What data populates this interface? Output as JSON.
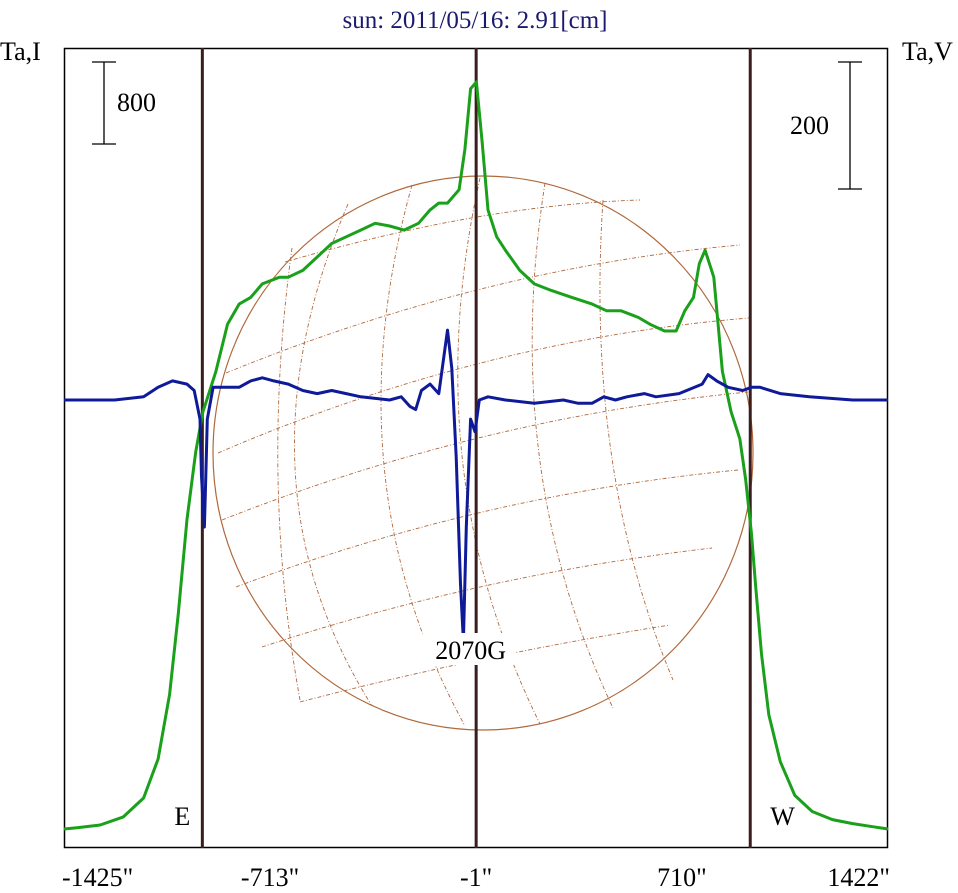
{
  "chart_data": {
    "type": "line",
    "title": "sun: 2011/05/16: 2.91[cm]",
    "left_axis_label": "Ta,I",
    "right_axis_label": "Ta,V",
    "left_scale_bar": "800",
    "right_scale_bar": "200",
    "x_ticks": [
      {
        "value": -1425,
        "label": "-1425\""
      },
      {
        "value": -713,
        "label": "-713\""
      },
      {
        "value": -1,
        "label": "-1\""
      },
      {
        "value": 710,
        "label": "710\""
      },
      {
        "value": 1422,
        "label": "1422\""
      }
    ],
    "xlim": [
      -1425,
      1422
    ],
    "limb_markers": [
      {
        "x": -947,
        "label": "E"
      },
      {
        "x": -1,
        "label": ""
      },
      {
        "x": 946,
        "label": "W"
      }
    ],
    "annotations": [
      {
        "x": -20,
        "text": "2070G"
      }
    ],
    "series": [
      {
        "color": "#1aa01a",
        "axis": "left",
        "points": [
          [
            -1425,
            0
          ],
          [
            -1380,
            10
          ],
          [
            -1300,
            30
          ],
          [
            -1220,
            90
          ],
          [
            -1150,
            230
          ],
          [
            -1100,
            520
          ],
          [
            -1060,
            1000
          ],
          [
            -1030,
            1600
          ],
          [
            -1000,
            2300
          ],
          [
            -970,
            2800
          ],
          [
            -945,
            3100
          ],
          [
            -930,
            3200
          ],
          [
            -900,
            3400
          ],
          [
            -860,
            3750
          ],
          [
            -820,
            3900
          ],
          [
            -780,
            3950
          ],
          [
            -740,
            4050
          ],
          [
            -680,
            4100
          ],
          [
            -650,
            4100
          ],
          [
            -600,
            4150
          ],
          [
            -550,
            4250
          ],
          [
            -500,
            4350
          ],
          [
            -450,
            4400
          ],
          [
            -400,
            4450
          ],
          [
            -350,
            4500
          ],
          [
            -300,
            4480
          ],
          [
            -250,
            4450
          ],
          [
            -200,
            4500
          ],
          [
            -160,
            4600
          ],
          [
            -130,
            4650
          ],
          [
            -100,
            4650
          ],
          [
            -60,
            4750
          ],
          [
            -40,
            5050
          ],
          [
            -20,
            5500
          ],
          [
            0,
            5550
          ],
          [
            20,
            5100
          ],
          [
            40,
            4600
          ],
          [
            70,
            4400
          ],
          [
            100,
            4300
          ],
          [
            150,
            4150
          ],
          [
            200,
            4050
          ],
          [
            260,
            4000
          ],
          [
            330,
            3950
          ],
          [
            400,
            3900
          ],
          [
            450,
            3850
          ],
          [
            500,
            3850
          ],
          [
            560,
            3800
          ],
          [
            600,
            3750
          ],
          [
            650,
            3700
          ],
          [
            690,
            3700
          ],
          [
            720,
            3850
          ],
          [
            750,
            3950
          ],
          [
            770,
            4200
          ],
          [
            790,
            4300
          ],
          [
            820,
            4100
          ],
          [
            850,
            3400
          ],
          [
            880,
            3100
          ],
          [
            910,
            2900
          ],
          [
            930,
            2600
          ],
          [
            950,
            2200
          ],
          [
            965,
            1800
          ],
          [
            985,
            1300
          ],
          [
            1010,
            850
          ],
          [
            1050,
            500
          ],
          [
            1100,
            250
          ],
          [
            1160,
            130
          ],
          [
            1230,
            70
          ],
          [
            1300,
            40
          ],
          [
            1360,
            20
          ],
          [
            1422,
            0
          ]
        ]
      },
      {
        "color": "#0f1a99",
        "axis": "right",
        "points": [
          [
            -1425,
            0
          ],
          [
            -1250,
            0
          ],
          [
            -1150,
            5
          ],
          [
            -1100,
            20
          ],
          [
            -1050,
            30
          ],
          [
            -1000,
            25
          ],
          [
            -975,
            15
          ],
          [
            -955,
            -30
          ],
          [
            -950,
            -120
          ],
          [
            -945,
            -160
          ],
          [
            -940,
            -200
          ],
          [
            -935,
            -120
          ],
          [
            -930,
            -30
          ],
          [
            -910,
            20
          ],
          [
            -880,
            20
          ],
          [
            -820,
            20
          ],
          [
            -780,
            30
          ],
          [
            -740,
            35
          ],
          [
            -700,
            30
          ],
          [
            -650,
            25
          ],
          [
            -600,
            15
          ],
          [
            -550,
            10
          ],
          [
            -500,
            15
          ],
          [
            -450,
            10
          ],
          [
            -400,
            5
          ],
          [
            -300,
            0
          ],
          [
            -260,
            5
          ],
          [
            -230,
            -10
          ],
          [
            -210,
            -15
          ],
          [
            -190,
            15
          ],
          [
            -160,
            25
          ],
          [
            -130,
            10
          ],
          [
            -100,
            110
          ],
          [
            -85,
            50
          ],
          [
            -70,
            -90
          ],
          [
            -55,
            -290
          ],
          [
            -45,
            -380
          ],
          [
            -35,
            -200
          ],
          [
            -20,
            -30
          ],
          [
            -5,
            -50
          ],
          [
            10,
            0
          ],
          [
            40,
            5
          ],
          [
            100,
            0
          ],
          [
            200,
            -5
          ],
          [
            300,
            0
          ],
          [
            350,
            -5
          ],
          [
            400,
            -5
          ],
          [
            440,
            5
          ],
          [
            480,
            0
          ],
          [
            520,
            5
          ],
          [
            580,
            10
          ],
          [
            620,
            5
          ],
          [
            700,
            10
          ],
          [
            780,
            25
          ],
          [
            800,
            40
          ],
          [
            830,
            30
          ],
          [
            870,
            20
          ],
          [
            920,
            15
          ],
          [
            950,
            20
          ],
          [
            980,
            20
          ],
          [
            1050,
            10
          ],
          [
            1150,
            5
          ],
          [
            1300,
            0
          ],
          [
            1422,
            0
          ]
        ]
      }
    ]
  }
}
